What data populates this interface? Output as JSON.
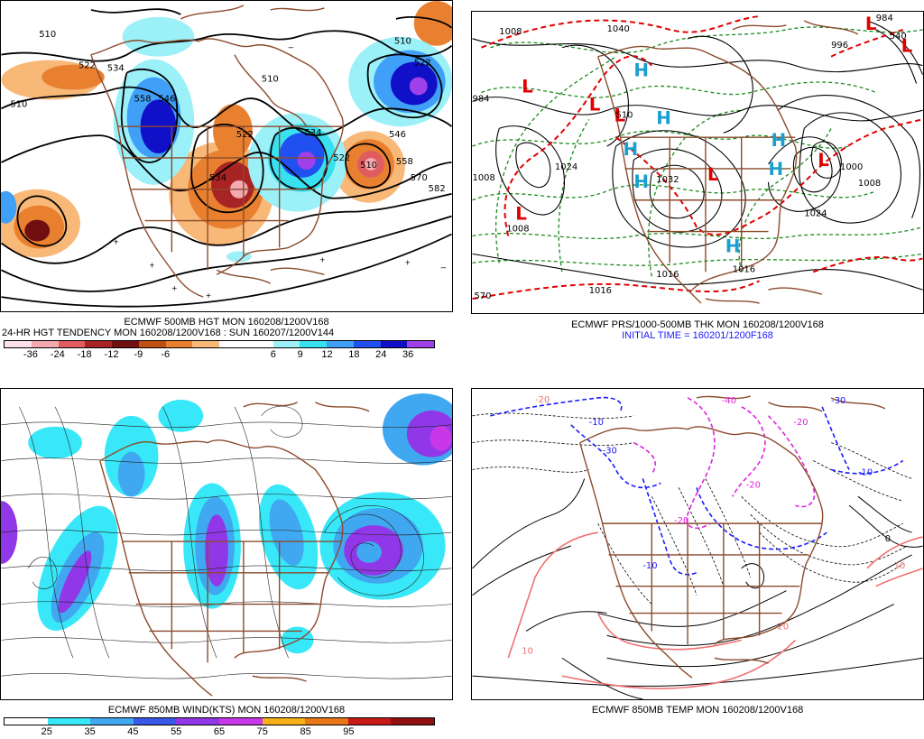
{
  "panels": {
    "top_left": {
      "caption1": "ECMWF 500MB HGT MON 160208/1200V168",
      "caption2": "24-HR HGT TENDENCY MON 160208/1200V168 : SUN 160207/1200V144",
      "contour_labels": [
        "510",
        "522",
        "534",
        "510",
        "558",
        "546",
        "522",
        "534",
        "510",
        "534",
        "522",
        "510",
        "558",
        "546",
        "570",
        "582",
        "510",
        "522"
      ],
      "colorbar": {
        "colors": [
          "#ffe0e8",
          "#f4a8b0",
          "#e05c60",
          "#a82424",
          "#700e10",
          "#c05010",
          "#e88030",
          "#f8b878",
          "#ffffff",
          "#ffffff",
          "#9cf0f8",
          "#38e0f0",
          "#40a0f8",
          "#2050f0",
          "#1010c8",
          "#a040e8"
        ],
        "ticks": [
          "-36",
          "-24",
          "-18",
          "-12",
          "-9",
          "-6",
          "6",
          "9",
          "12",
          "18",
          "24",
          "36"
        ]
      }
    },
    "top_right": {
      "caption1": "ECMWF PRS/1000-500MB THK MON 160208/1200V168",
      "caption2": "INITIAL TIME = 160201/1200F168",
      "iso_labels": [
        "1008",
        "984",
        "1008",
        "1040",
        "1024",
        "1032",
        "1016",
        "1008",
        "1016",
        "1024",
        "1000",
        "1008",
        "1016",
        "996",
        "984",
        "570",
        "510",
        "540"
      ],
      "highs": [
        "H",
        "H",
        "H",
        "H",
        "H",
        "H",
        "H"
      ],
      "lows": [
        "L",
        "L",
        "L",
        "L",
        "L",
        "L",
        "L",
        "L"
      ]
    },
    "bottom_left": {
      "caption1": "ECMWF 850MB WIND(KTS) MON 160208/1200V168",
      "colorbar": {
        "colors": [
          "#ffffff",
          "#38e8f8",
          "#40a8f0",
          "#3858e8",
          "#9038e8",
          "#c838e8",
          "#f8b018",
          "#e87818",
          "#c81818",
          "#901010"
        ],
        "ticks": [
          "25",
          "35",
          "45",
          "55",
          "65",
          "75",
          "85",
          "95"
        ]
      }
    },
    "bottom_right": {
      "caption1": "ECMWF 850MB TEMP MON 160208/1200V168",
      "temp_labels": [
        "-20",
        "-10",
        "-20",
        "-20",
        "-10",
        "-30",
        "-20",
        "-10",
        "0",
        "10",
        "10",
        "20",
        "-40",
        "-30"
      ]
    }
  },
  "colors": {
    "coast": "#8b4a2b",
    "contour": "#000000",
    "thickness_red": "#e00000",
    "thickness_green": "#1a8a1a",
    "high_cyan": "#1aa0d0",
    "low_red": "#e00000",
    "temp_blue": "#1a1aff",
    "temp_magenta": "#e020e0",
    "temp_pink": "#f07070"
  }
}
